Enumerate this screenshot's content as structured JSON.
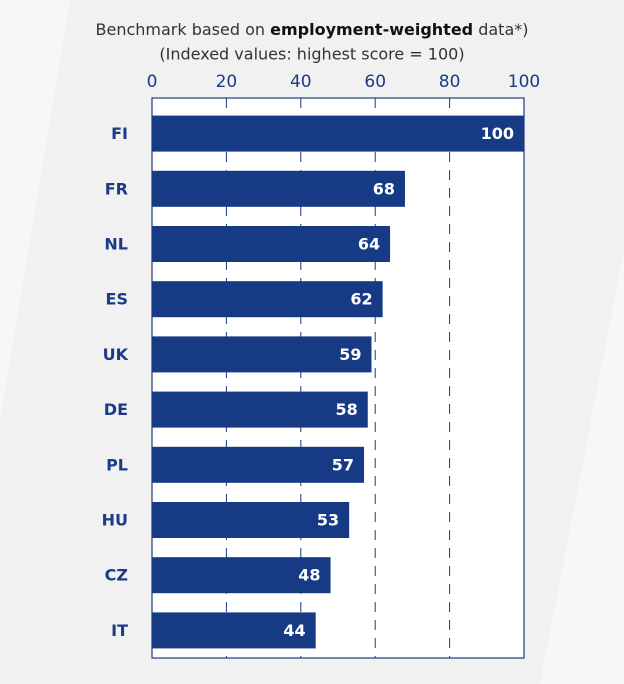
{
  "chart_data": {
    "type": "bar",
    "orientation": "horizontal",
    "title_parts": [
      "Benchmark based on ",
      "employment-weighted",
      " data*)"
    ],
    "subtitle": "(Indexed values: highest score = 100)",
    "categories": [
      "FI",
      "FR",
      "NL",
      "ES",
      "UK",
      "DE",
      "PL",
      "HU",
      "CZ",
      "IT"
    ],
    "values": [
      100,
      68,
      64,
      62,
      59,
      58,
      57,
      53,
      48,
      44
    ],
    "color": "#173a85",
    "xlim": [
      0,
      100
    ],
    "xticks": [
      0,
      20,
      40,
      60,
      80,
      100
    ],
    "grid": true
  }
}
